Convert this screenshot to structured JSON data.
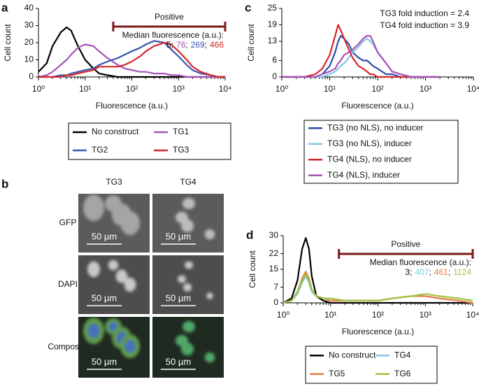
{
  "chart_data": [
    {
      "type": "line",
      "panel": "a",
      "x_label": "Fluorescence (a.u.)",
      "y_label": "Cell count",
      "xlog": true,
      "xlim": [
        1,
        10000
      ],
      "xticks": [
        {
          "value": 1,
          "label": "10⁰"
        },
        {
          "value": 10,
          "label": "10¹"
        },
        {
          "value": 100,
          "label": "10²"
        },
        {
          "value": 1000,
          "label": "10³"
        },
        {
          "value": 10000,
          "label": "10⁴"
        }
      ],
      "ylim": [
        0,
        40
      ],
      "yticks": [
        0,
        10,
        20,
        30,
        40
      ],
      "x": [
        1,
        1.5,
        2,
        3,
        4,
        5,
        7,
        10,
        15,
        20,
        30,
        50,
        70,
        100,
        150,
        200,
        300,
        500,
        700,
        1000,
        1500,
        2000,
        3000,
        5000,
        7000,
        10000
      ],
      "series": [
        {
          "name": "No construct",
          "color": "#000000",
          "median": 5,
          "values": [
            3,
            8,
            18,
            26,
            29,
            27,
            18,
            10,
            5,
            2,
            1,
            0,
            0,
            0,
            0,
            0,
            0,
            0,
            0,
            0,
            0,
            0,
            0,
            0,
            0,
            0
          ]
        },
        {
          "name": "TG1",
          "color": "#a653b5",
          "median": 76,
          "values": [
            0,
            1,
            3,
            7,
            10,
            13,
            17,
            19,
            18,
            15,
            11,
            7,
            5,
            4,
            3,
            3,
            2,
            2,
            1,
            1,
            0,
            0,
            0,
            0,
            0,
            0
          ]
        },
        {
          "name": "TG2",
          "color": "#3b55b0",
          "median": 269,
          "values": [
            0,
            0,
            0,
            1,
            1,
            2,
            3,
            4,
            5,
            7,
            9,
            11,
            13,
            15,
            17,
            19,
            21,
            20,
            16,
            12,
            7,
            4,
            2,
            1,
            0,
            0
          ]
        },
        {
          "name": "TG3",
          "color": "#d8262a",
          "median": 466,
          "values": [
            0,
            0,
            0,
            0,
            1,
            1,
            2,
            3,
            4,
            6,
            6,
            6,
            7,
            9,
            12,
            15,
            18,
            20,
            19,
            15,
            10,
            6,
            3,
            1,
            0,
            0
          ]
        }
      ],
      "gate_label": "Positive",
      "positive_gate": [
        40,
        10000
      ],
      "gate_color": "#7a1a1a",
      "median_title": "Median fluorescence (a.u.):",
      "median_separator": ";",
      "legend_columns": 2
    },
    {
      "type": "line",
      "panel": "c",
      "x_label": "Fluorescence (a.u.)",
      "y_label": "Cell count",
      "xlog": true,
      "xlim": [
        1,
        10000
      ],
      "xticks": [
        {
          "value": 1,
          "label": "10⁰"
        },
        {
          "value": 10,
          "label": "10¹"
        },
        {
          "value": 100,
          "label": "10²"
        },
        {
          "value": 1000,
          "label": "10³"
        },
        {
          "value": 10000,
          "label": "10⁴"
        }
      ],
      "ylim": [
        0,
        25
      ],
      "yticks": [
        0,
        6,
        13,
        19,
        25
      ],
      "x": [
        1,
        2,
        3,
        5,
        7,
        10,
        13,
        15,
        17,
        20,
        25,
        30,
        40,
        50,
        60,
        70,
        80,
        100,
        150,
        200,
        300,
        500,
        1000,
        2000
      ],
      "series": [
        {
          "name": "TG3 (no NLS), no inducer",
          "color": "#2e4fa8",
          "values": [
            0,
            0,
            0,
            0,
            1,
            4,
            9,
            13,
            15,
            14,
            12,
            9,
            7,
            6,
            6,
            5,
            4,
            3,
            1,
            1,
            0,
            0,
            0,
            0
          ]
        },
        {
          "name": "TG3 (no NLS), inducer",
          "color": "#7fc8dc",
          "values": [
            0,
            0,
            0,
            0,
            0,
            1,
            2,
            3,
            4,
            5,
            7,
            9,
            11,
            13,
            14,
            13,
            12,
            9,
            5,
            2,
            1,
            0,
            0,
            0
          ]
        },
        {
          "name": "TG4 (NLS), no inducer",
          "color": "#d8262a",
          "values": [
            0,
            0,
            0,
            1,
            3,
            8,
            15,
            19,
            17,
            14,
            10,
            7,
            4,
            3,
            2,
            1,
            1,
            0,
            0,
            0,
            0,
            0,
            0,
            0
          ]
        },
        {
          "name": "TG4 (NLS), inducer",
          "color": "#a653b5",
          "values": [
            0,
            0,
            0,
            0,
            1,
            2,
            3,
            5,
            6,
            8,
            9,
            10,
            12,
            14,
            15,
            15,
            13,
            9,
            5,
            2,
            1,
            0,
            0,
            0
          ]
        }
      ],
      "annotations": [
        "TG3 fold induction = 2.4",
        "TG4 fold induction = 3.9"
      ],
      "legend_columns": 1
    },
    {
      "type": "line",
      "panel": "d",
      "x_label": "Fluorescence (a.u.)",
      "y_label": "Cell count",
      "xlog": true,
      "xlim": [
        1,
        10000
      ],
      "xticks": [
        {
          "value": 1,
          "label": "10⁰"
        },
        {
          "value": 10,
          "label": "10¹"
        },
        {
          "value": 100,
          "label": "10²"
        },
        {
          "value": 1000,
          "label": "10³"
        },
        {
          "value": 10000,
          "label": "10⁴"
        }
      ],
      "ylim": [
        0,
        30
      ],
      "yticks": [
        0,
        7,
        15,
        22,
        30
      ],
      "x": [
        1,
        1.5,
        2,
        2.5,
        3,
        3.5,
        4,
        5,
        7,
        10,
        20,
        50,
        100,
        200,
        500,
        1000,
        2000,
        5000,
        10000
      ],
      "series": [
        {
          "name": "No construct",
          "color": "#000000",
          "median": 3,
          "values": [
            0,
            2,
            10,
            24,
            29,
            24,
            12,
            3,
            1,
            0,
            0,
            0,
            0,
            0,
            0,
            0,
            0,
            0,
            0
          ]
        },
        {
          "name": "TG4",
          "color": "#7fc8dc",
          "median": 407,
          "values": [
            0,
            1,
            4,
            9,
            12,
            9,
            5,
            3,
            2,
            1,
            1,
            1,
            1,
            2,
            3,
            3,
            2,
            1,
            0
          ]
        },
        {
          "name": "TG5",
          "color": "#ec7a45",
          "median": 461,
          "values": [
            0,
            1,
            5,
            11,
            14,
            11,
            6,
            3,
            2,
            1,
            1,
            1,
            1,
            2,
            3,
            3,
            2,
            1,
            0
          ]
        },
        {
          "name": "TG6",
          "color": "#9cc43c",
          "median": 1124,
          "values": [
            0,
            1,
            5,
            10,
            13,
            10,
            6,
            3,
            2,
            2,
            1,
            1,
            1,
            2,
            3,
            4,
            3,
            2,
            1
          ]
        }
      ],
      "gate_label": "Positive",
      "positive_gate": [
        15,
        10000
      ],
      "gate_color": "#7a1a1a",
      "median_title": "Median fluorescence (a.u.):",
      "median_separator": ";",
      "legend_columns": 2
    }
  ],
  "image_panel": {
    "panel": "b",
    "columns": [
      "TG3",
      "TG4"
    ],
    "rows": [
      "GFP",
      "DAPI",
      "Composite"
    ],
    "scale_bar": "50 µm"
  }
}
